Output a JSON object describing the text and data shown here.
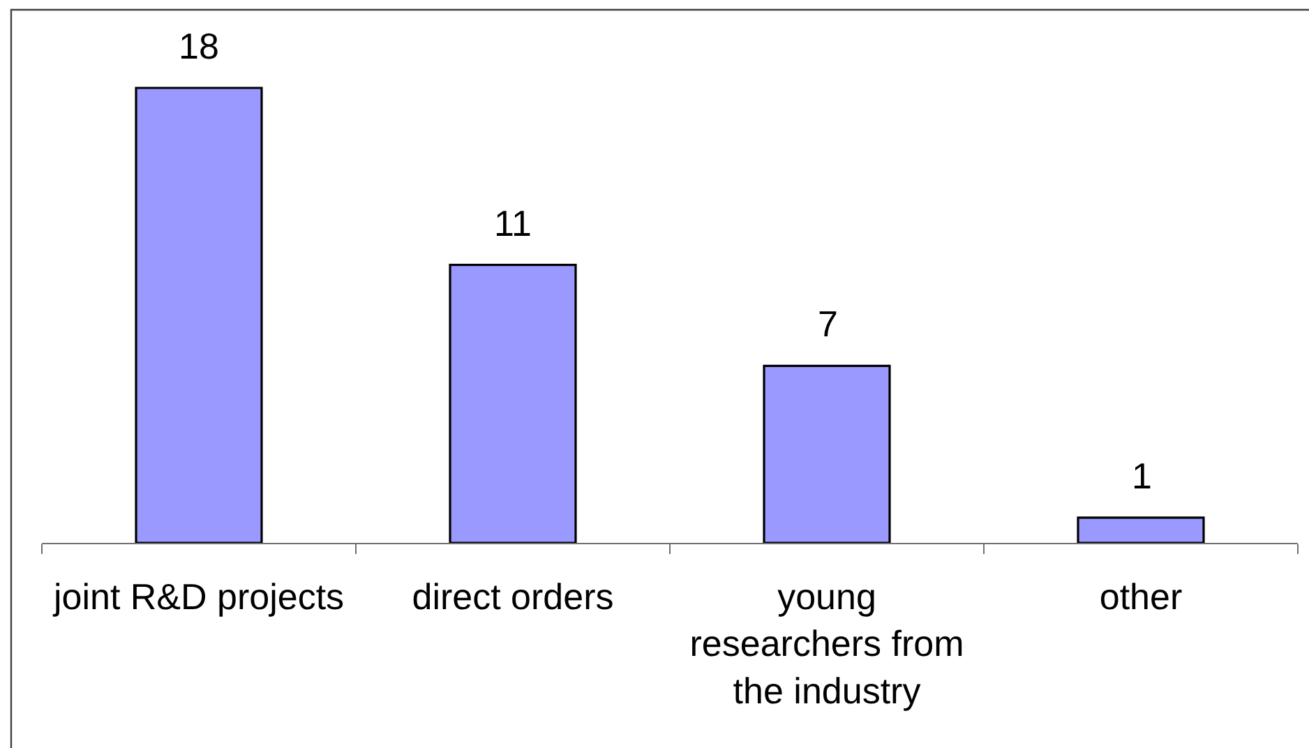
{
  "chart_data": {
    "type": "bar",
    "categories": [
      "joint R&D projects",
      "direct orders",
      "young researchers from the industry",
      "other"
    ],
    "values": [
      18,
      11,
      7,
      1
    ],
    "color": "#9999ff",
    "data_labels": true,
    "tick_labels": "x"
  }
}
